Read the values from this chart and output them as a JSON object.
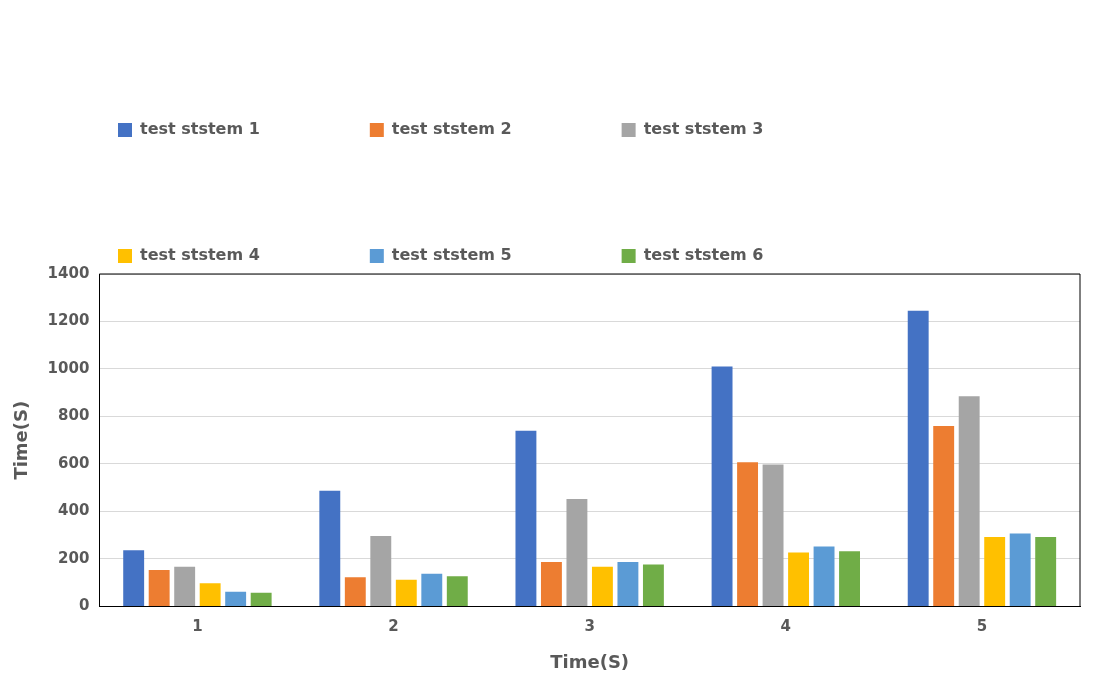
{
  "chart_data": {
    "type": "bar",
    "xlabel": "Time(S)",
    "ylabel": "Time(S)",
    "categories": [
      "1",
      "2",
      "3",
      "4",
      "5"
    ],
    "series": [
      {
        "name": "test ststem 1",
        "color": "#4472c4",
        "values": [
          237,
          487,
          740,
          1010,
          1245
        ]
      },
      {
        "name": "test ststem 2",
        "color": "#ed7d31",
        "values": [
          153,
          123,
          187,
          607,
          760
        ]
      },
      {
        "name": "test ststem 3",
        "color": "#a5a5a5",
        "values": [
          167,
          297,
          452,
          598,
          885
        ]
      },
      {
        "name": "test ststem 4",
        "color": "#ffc000",
        "values": [
          97,
          112,
          167,
          227,
          292
        ]
      },
      {
        "name": "test ststem 5",
        "color": "#5b9bd5",
        "values": [
          62,
          137,
          187,
          252,
          307
        ]
      },
      {
        "name": "test ststem 6",
        "color": "#70ad47",
        "values": [
          57,
          127,
          177,
          232,
          292
        ]
      }
    ],
    "ylim": [
      0,
      1400
    ],
    "yticks": [
      0,
      200,
      400,
      600,
      800,
      1000,
      1200,
      1400
    ],
    "grid": "y",
    "legend": "top left"
  }
}
